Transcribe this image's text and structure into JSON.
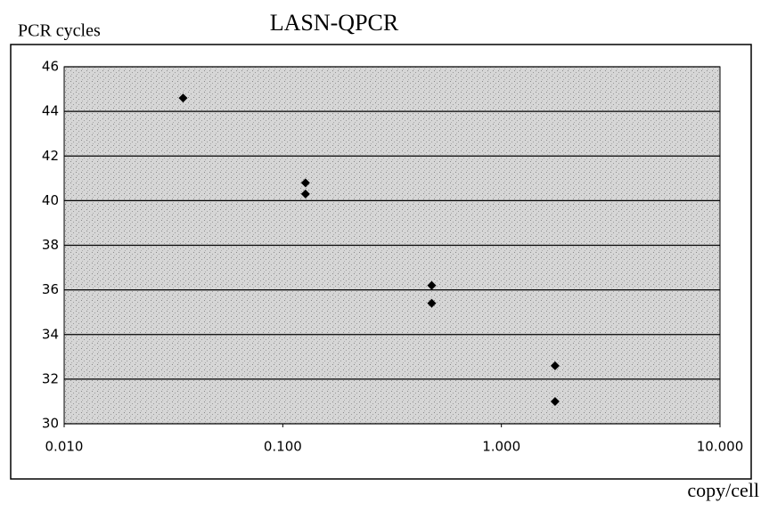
{
  "chart_data": {
    "type": "scatter",
    "title": "LASN-QPCR",
    "y_label": "PCR cycles",
    "x_label": "copy/cell",
    "x": [
      0.035,
      0.127,
      0.127,
      0.48,
      0.48,
      1.76,
      1.76
    ],
    "values": [
      44.6,
      40.8,
      40.3,
      36.2,
      35.4,
      32.6,
      31.0
    ],
    "color": "#000000",
    "xscale": "log",
    "grid": true,
    "xlim": [
      0.01,
      10
    ],
    "xticks": [
      {
        "value": 0.01,
        "label": "0.010"
      },
      {
        "value": 0.1,
        "label": "0.100"
      },
      {
        "value": 1,
        "label": "1.000"
      },
      {
        "value": 10,
        "label": "10.000"
      }
    ],
    "ylim": [
      30,
      46
    ],
    "yticks": [
      30,
      32,
      34,
      36,
      38,
      40,
      42,
      44,
      46
    ]
  }
}
